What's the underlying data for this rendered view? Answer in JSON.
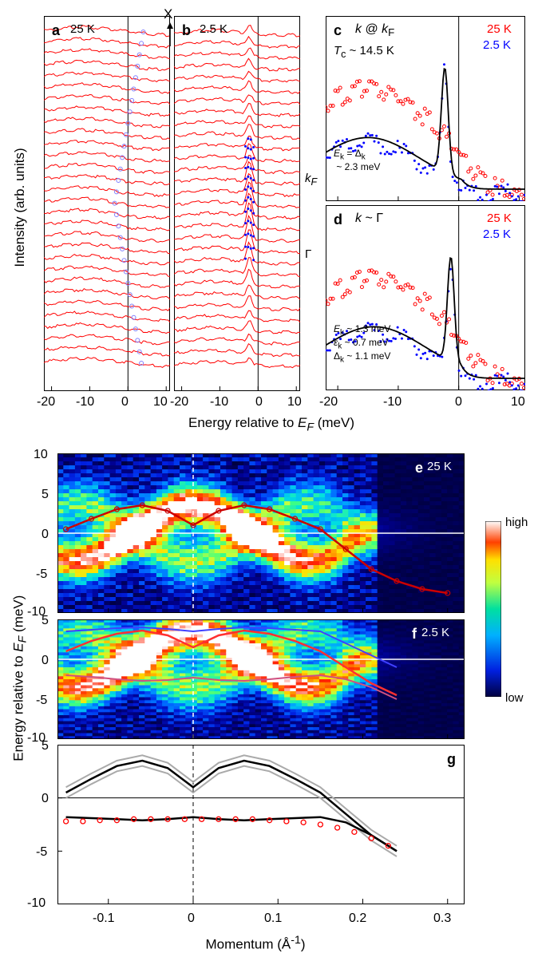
{
  "palette": {
    "red": "#ff0000",
    "blue": "#0000ff",
    "darkblue": "#00008b",
    "black": "#000000",
    "white": "#ffffff",
    "gray": "#888888",
    "heatmap": [
      "#000040",
      "#000090",
      "#0020e0",
      "#0060ff",
      "#00a0ff",
      "#00e0e0",
      "#40ff80",
      "#c0ff40",
      "#ffe000",
      "#ff8000",
      "#ff2000",
      "#ffffff"
    ],
    "heat_low": "#000040",
    "heat_mid1": "#0040d0",
    "heat_mid2": "#00b0ff",
    "heat_mid3": "#40ff80",
    "heat_mid4": "#ffe000",
    "heat_high": "#ffffff"
  },
  "top": {
    "xlabel": "Energy relative to E_F (meV)",
    "ylabel": "Intensity (arb. units)",
    "x_ticks_ab": [
      -20,
      -10,
      0,
      10
    ],
    "x_ticks_cd": [
      -20,
      -10,
      0,
      10
    ],
    "xlim": [
      -22,
      11
    ],
    "panel_a": {
      "label": "a",
      "temp": "25 K",
      "n_curves": 30,
      "curve_color": "#ff0000",
      "marker_color": "#8080ff",
      "marker_peak_x": [
        4,
        3.5,
        3,
        2.5,
        2,
        1.5,
        1,
        0.5,
        0,
        -0.5,
        -1,
        -1.5,
        -2,
        -2.5,
        -3,
        -3.5,
        -3,
        -2.5,
        -2,
        -1.5,
        -1,
        -0.5,
        0,
        0.5,
        1,
        1.5,
        2,
        2.5,
        3,
        3.5
      ]
    },
    "panel_b": {
      "label": "b",
      "temp": "2.5 K",
      "kF_label": "k_F",
      "gamma_label": "Γ",
      "x_arrow_label": "X",
      "n_curves": 30,
      "curve_color": "#ff0000",
      "peak_x": -2.3,
      "marker_color": "#0000ff"
    },
    "panel_c": {
      "label": "c",
      "title": "k @ k_F",
      "red_label": "25 K",
      "blue_label": "2.5 K",
      "tc_label": "T_c ~ 14.5 K",
      "ek_label": "E_k = Δ_k\n ~ 2.3 meV",
      "red_data_color": "#ff0000",
      "blue_data_color": "#0000ff",
      "fit_color": "#000000",
      "peak_x": -2.3
    },
    "panel_d": {
      "label": "d",
      "title": "k ~ Γ",
      "red_label": "25 K",
      "blue_label": "2.5 K",
      "ek_label": "E_k ~ 1.3 meV",
      "eps_label": "ε_k ~ 0.7 meV",
      "delta_label": "Δ_k ~ 1.1 meV",
      "peak_x": -1.3
    }
  },
  "bottom": {
    "xlabel": "Momentum (Å⁻¹)",
    "ylabel": "Energy relative to E_F (meV)",
    "x_ticks": [
      -0.1,
      0,
      0.1,
      0.2,
      0.3
    ],
    "xlim": [
      -0.16,
      0.32
    ],
    "panel_e": {
      "label": "e",
      "temp": "25 K",
      "ylim": [
        -10,
        10
      ],
      "y_ticks": [
        -10,
        -5,
        0,
        5,
        10
      ],
      "disp_color": "#cc0000",
      "ef_line_color": "#ffffff",
      "dispersion_k": [
        -0.15,
        -0.12,
        -0.09,
        -0.06,
        -0.03,
        0,
        0.03,
        0.06,
        0.09,
        0.12,
        0.15,
        0.18,
        0.21,
        0.24,
        0.27,
        0.3
      ],
      "dispersion_E": [
        0.5,
        1.8,
        3.0,
        3.5,
        2.8,
        1.0,
        2.8,
        3.5,
        3.0,
        1.8,
        0.5,
        -2.0,
        -4.5,
        -6.0,
        -7.0,
        -7.5
      ]
    },
    "panel_f": {
      "label": "f",
      "temp": "2.5 K",
      "ylim": [
        -10,
        5
      ],
      "y_ticks": [
        -10,
        -5,
        0,
        5
      ],
      "upper_red_E": [
        1.0,
        2.3,
        3.2,
        3.6,
        3.0,
        1.5,
        3.0,
        3.6,
        3.2,
        2.3,
        1.0,
        -1.0,
        -3.0,
        -4.5
      ],
      "upper_blue_E": [
        3.5,
        3.7,
        3.9,
        4.0,
        3.8,
        3.5,
        3.8,
        4.0,
        3.9,
        3.7,
        3.5,
        2.0,
        0.5,
        -1.0
      ],
      "lower_red_E": [
        -2.0,
        -2.2,
        -2.5,
        -2.7,
        -2.6,
        -2.3,
        -2.6,
        -2.7,
        -2.5,
        -2.2,
        -2.0,
        -2.5,
        -3.5,
        -5.0
      ],
      "k_pts": [
        -0.15,
        -0.12,
        -0.09,
        -0.06,
        -0.03,
        0,
        0.03,
        0.06,
        0.09,
        0.12,
        0.15,
        0.18,
        0.21,
        0.24
      ]
    },
    "panel_g": {
      "label": "g",
      "ylim": [
        -10,
        5
      ],
      "y_ticks": [
        -10,
        -5,
        0,
        5
      ],
      "black_k": [
        -0.15,
        -0.12,
        -0.09,
        -0.06,
        -0.03,
        0,
        0.03,
        0.06,
        0.09,
        0.12,
        0.15,
        0.18,
        0.21,
        0.24
      ],
      "black_upper_E": [
        0.5,
        1.8,
        3.0,
        3.5,
        2.8,
        1.0,
        2.8,
        3.5,
        3.0,
        1.8,
        0.5,
        -1.5,
        -3.5,
        -5.0
      ],
      "black_lower_E": [
        -1.8,
        -1.9,
        -2.0,
        -2.1,
        -2.0,
        -1.8,
        -2.0,
        -2.1,
        -2.0,
        -1.9,
        -1.8,
        -2.3,
        -3.5,
        -5.0
      ],
      "gray_color": "#aaaaaa",
      "red_markers_k": [
        -0.15,
        -0.13,
        -0.11,
        -0.09,
        -0.07,
        -0.05,
        -0.03,
        -0.01,
        0.01,
        0.03,
        0.05,
        0.07,
        0.09,
        0.11,
        0.13,
        0.15,
        0.17,
        0.19,
        0.21,
        0.23
      ],
      "red_markers_E": [
        -2.2,
        -2.2,
        -2.1,
        -2.1,
        -2.0,
        -2.0,
        -2.0,
        -2.0,
        -2.0,
        -2.0,
        -2.0,
        -2.0,
        -2.1,
        -2.2,
        -2.3,
        -2.5,
        -2.8,
        -3.2,
        -3.8,
        -4.5
      ]
    },
    "colorbar": {
      "high_label": "high",
      "low_label": "low"
    }
  }
}
